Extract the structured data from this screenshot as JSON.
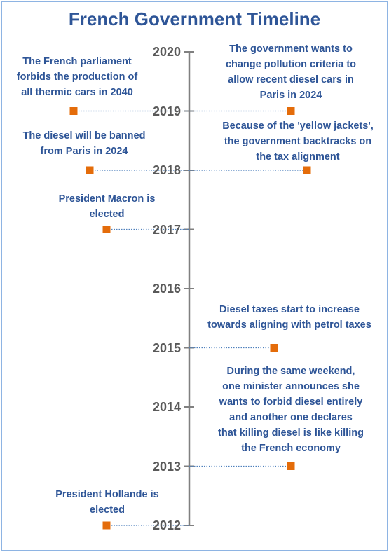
{
  "title": "French Government Timeline",
  "colors": {
    "axis": "#808080",
    "marker": "#e46c0a",
    "text": "#2e5597",
    "year": "#595959",
    "border": "#8eb4e3"
  },
  "years": [
    "2020",
    "2019",
    "2018",
    "2017",
    "2016",
    "2015",
    "2014",
    "2013",
    "2012"
  ],
  "events": [
    {
      "id": "ev-2019-left",
      "year": 2019,
      "side": "left",
      "lines": [
        "The French parliament",
        "forbids the production of",
        "all thermic cars in 2040"
      ]
    },
    {
      "id": "ev-2019-right",
      "year": 2019,
      "side": "right",
      "lines": [
        "The government wants to",
        "change pollution criteria to",
        "allow recent diesel cars in",
        "Paris in 2024"
      ]
    },
    {
      "id": "ev-2018-left",
      "year": 2018,
      "side": "left",
      "lines": [
        "The diesel will be banned",
        "from Paris in 2024"
      ]
    },
    {
      "id": "ev-2018-right",
      "year": 2018,
      "side": "right",
      "lines": [
        "Because of the 'yellow jackets',",
        "the government backtracks on",
        "the tax alignment"
      ]
    },
    {
      "id": "ev-2017-left",
      "year": 2017,
      "side": "left",
      "lines": [
        "President Macron is",
        "elected"
      ]
    },
    {
      "id": "ev-2015-right",
      "year": 2015,
      "side": "right",
      "lines": [
        "Diesel taxes start to increase",
        "towards aligning with petrol taxes"
      ]
    },
    {
      "id": "ev-2013-right",
      "year": 2013,
      "side": "right",
      "lines": [
        "During the same weekend,",
        "one minister announces she",
        "wants to forbid diesel entirely",
        "and another one declares",
        "that killing diesel is like killing",
        "the French economy"
      ]
    },
    {
      "id": "ev-2012-left",
      "year": 2012,
      "side": "left",
      "lines": [
        "President Hollande is",
        "elected"
      ]
    }
  ]
}
